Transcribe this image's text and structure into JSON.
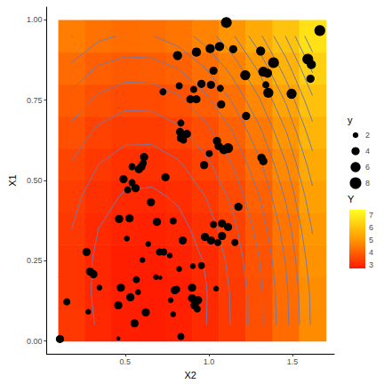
{
  "chart_data": {
    "type": "scatter",
    "x_label": "X2",
    "y_label": "X1",
    "xlim": [
      0.03,
      1.75
    ],
    "ylim": [
      -0.04,
      1.04
    ],
    "xticks": [
      0.5,
      {
        "value": 1.0,
        "label": "1.0"
      },
      1.5
    ],
    "yticks": [
      {
        "value": 0,
        "label": "0.00"
      },
      0.25,
      {
        "value": 0.5,
        "label": "0.50"
      },
      0.75,
      {
        "value": 1,
        "label": "1.00"
      }
    ],
    "grid": false,
    "marker": "circle",
    "color": "#000000",
    "x": [
      1.105,
      1.664,
      0.926,
      1.008,
      1.064,
      1.146,
      0.813,
      1.31,
      1.387,
      1.592,
      1.613,
      1.326,
      1.351,
      1.608,
      1.028,
      1.218,
      0.956,
      1.013,
      0.823,
      0.726,
      0.91,
      1.069,
      0.926,
      0.89,
      1.341,
      1.356,
      1.495,
      1.074,
      1.223,
      0.833,
      0.828,
      0.833,
      0.849,
      0.869,
      0.849,
      1.049,
      1.059,
      1.115,
      1.09,
      0.972,
      1.003,
      1.315,
      1.326,
      0.613,
      0.597,
      0.582,
      0.608,
      0.541,
      0.541,
      0.49,
      0.562,
      0.515,
      0.741,
      0.654,
      0.69,
      0.464,
      0.526,
      0.787,
      1.028,
      1.079,
      1.177,
      1.115,
      1.079,
      0.977,
      1.013,
      1.054,
      1.156,
      0.844,
      0.638,
      0.705,
      0.731,
      0.767,
      0.51,
      0.603,
      0.269,
      0.29,
      0.31,
      0.567,
      0.474,
      0.823,
      0.905,
      0.956,
      0.797,
      0.808,
      0.577,
      0.9,
      1.044,
      0.685,
      0.346,
      0.9,
      0.936,
      0.915,
      0.931,
      0.772,
      0.531,
      0.623,
      0.459,
      0.279,
      0.151,
      0.556,
      0.833,
      0.459,
      0.11,
      0.787,
      0.71
    ],
    "y": [
      0.992,
      0.967,
      0.9,
      0.911,
      0.917,
      0.909,
      0.889,
      0.903,
      0.867,
      0.878,
      0.861,
      0.839,
      0.834,
      0.817,
      0.842,
      0.828,
      0.801,
      0.798,
      0.795,
      0.776,
      0.784,
      0.787,
      0.753,
      0.753,
      0.798,
      0.773,
      0.77,
      0.737,
      0.701,
      0.679,
      0.651,
      0.632,
      0.64,
      0.645,
      0.626,
      0.623,
      0.607,
      0.601,
      0.596,
      0.548,
      0.584,
      0.571,
      0.56,
      0.573,
      0.543,
      0.535,
      0.554,
      0.543,
      0.493,
      0.504,
      0.476,
      0.471,
      0.51,
      0.432,
      0.371,
      0.38,
      0.382,
      0.374,
      0.363,
      0.366,
      0.418,
      0.355,
      0.327,
      0.324,
      0.313,
      0.307,
      0.307,
      0.313,
      0.302,
      0.277,
      0.277,
      0.266,
      0.319,
      0.252,
      0.277,
      0.216,
      0.208,
      0.191,
      0.166,
      0.224,
      0.233,
      0.235,
      0.158,
      0.161,
      0.152,
      0.166,
      0.163,
      0.199,
      0.166,
      0.133,
      0.127,
      0.111,
      0.1,
      0.127,
      0.136,
      0.089,
      0.111,
      0.091,
      0.122,
      0.055,
      0.014,
      0.008,
      0.006,
      0.083,
      0.197
    ],
    "size": [
      7,
      7,
      5,
      5,
      5,
      4,
      5,
      5,
      7,
      7,
      5,
      6,
      5,
      4,
      4,
      6,
      4,
      4,
      3,
      3,
      3,
      3,
      4,
      4,
      3,
      6,
      6,
      4,
      4,
      3,
      4,
      4,
      4,
      4,
      3,
      4,
      4,
      6,
      5,
      4,
      3,
      4,
      4,
      4,
      4,
      4,
      3,
      3,
      3,
      4,
      4,
      3,
      4,
      4,
      4,
      4,
      4,
      3,
      3,
      4,
      4,
      4,
      4,
      4,
      4,
      3,
      3,
      4,
      2,
      3,
      3,
      2,
      2,
      2,
      4,
      4,
      4,
      3,
      4,
      2,
      2,
      3,
      4,
      3,
      2,
      4,
      2,
      2,
      2,
      4,
      4,
      4,
      3,
      2,
      4,
      4,
      4,
      2,
      3,
      4,
      3,
      1,
      4,
      2,
      1
    ],
    "size_legend": {
      "title": "y",
      "values": [
        2,
        4,
        6,
        8
      ]
    },
    "heatmap": {
      "x": [
        0.18,
        0.34,
        0.5,
        0.66,
        0.82,
        0.98,
        1.14,
        1.3,
        1.46,
        1.62
      ],
      "y": [
        0.05,
        0.15,
        0.25,
        0.35,
        0.45,
        0.55,
        0.65,
        0.75,
        0.85,
        0.95
      ],
      "values": [
        [
          3.23,
          2.96,
          2.8,
          2.75,
          2.81,
          2.99,
          3.27,
          3.67,
          4.18,
          4.8
        ],
        [
          3.19,
          2.93,
          2.77,
          2.73,
          2.8,
          2.98,
          3.28,
          3.68,
          4.2,
          4.82
        ],
        [
          3.2,
          2.94,
          2.79,
          2.76,
          2.84,
          3.02,
          3.33,
          3.74,
          4.26,
          4.9
        ],
        [
          3.25,
          3.0,
          2.86,
          2.83,
          2.92,
          3.11,
          3.42,
          3.84,
          4.37,
          5.02
        ],
        [
          3.34,
          3.1,
          2.97,
          2.95,
          3.04,
          3.25,
          3.56,
          3.99,
          4.53,
          5.18
        ],
        [
          3.48,
          3.25,
          3.13,
          3.12,
          3.22,
          3.43,
          3.75,
          4.19,
          4.73,
          5.39
        ],
        [
          3.67,
          3.44,
          3.33,
          3.33,
          3.44,
          3.66,
          3.99,
          4.43,
          4.98,
          5.65
        ],
        [
          3.91,
          3.69,
          3.58,
          3.59,
          3.7,
          3.93,
          4.27,
          4.72,
          5.28,
          5.95
        ],
        [
          4.19,
          3.97,
          3.88,
          3.89,
          4.01,
          4.25,
          4.59,
          5.05,
          5.62,
          6.3
        ],
        [
          4.51,
          4.31,
          4.22,
          4.24,
          4.37,
          4.61,
          4.96,
          5.43,
          6.01,
          6.7
        ]
      ]
    },
    "colorbar": {
      "title": "Y",
      "range": [
        2.7,
        7.4
      ],
      "ticks": [
        3,
        4,
        5,
        6,
        7
      ]
    },
    "contour_levels": [
      3.0,
      3.25,
      3.5,
      3.75,
      4.0,
      4.25,
      4.5,
      4.75,
      5.0,
      5.25,
      5.5,
      5.75,
      6.0,
      6.25,
      6.5
    ]
  }
}
